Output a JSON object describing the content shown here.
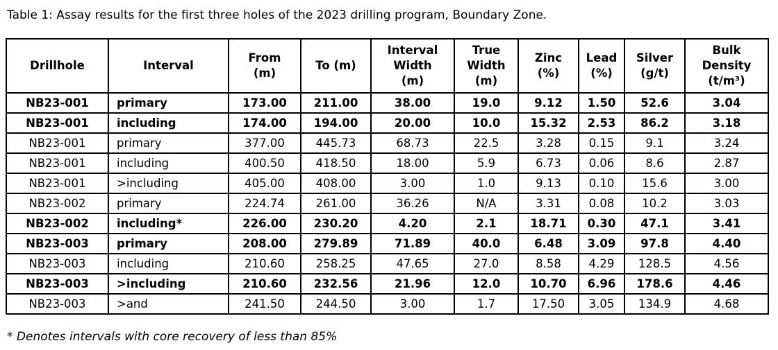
{
  "caption": "Table 1: Assay results for the first three holes of the 2023 drilling program, Boundary Zone.",
  "footnote": "* Denotes intervals with core recovery of less than 85%",
  "table": {
    "columns": [
      "Drillhole",
      "Interval",
      "From\n(m)",
      "To (m)",
      "Interval\nWidth\n(m)",
      "True\nWidth\n(m)",
      "Zinc\n(%)",
      "Lead\n(%)",
      "Silver\n(g/t)",
      "Bulk\nDensity\n(t/m³)"
    ],
    "rows": [
      {
        "bold": true,
        "cells": [
          "NB23-001",
          "primary",
          "173.00",
          "211.00",
          "38.00",
          "19.0",
          "9.12",
          "1.50",
          "52.6",
          "3.04"
        ]
      },
      {
        "bold": true,
        "cells": [
          "NB23-001",
          "including",
          "174.00",
          "194.00",
          "20.00",
          "10.0",
          "15.32",
          "2.53",
          "86.2",
          "3.18"
        ]
      },
      {
        "bold": false,
        "cells": [
          "NB23-001",
          "primary",
          "377.00",
          "445.73",
          "68.73",
          "22.5",
          "3.28",
          "0.15",
          "9.1",
          "3.24"
        ]
      },
      {
        "bold": false,
        "cells": [
          "NB23-001",
          "including",
          "400.50",
          "418.50",
          "18.00",
          "5.9",
          "6.73",
          "0.06",
          "8.6",
          "2.87"
        ]
      },
      {
        "bold": false,
        "cells": [
          "NB23-001",
          ">including",
          "405.00",
          "408.00",
          "3.00",
          "1.0",
          "9.13",
          "0.10",
          "15.6",
          "3.00"
        ]
      },
      {
        "bold": false,
        "cells": [
          "NB23-002",
          "primary",
          "224.74",
          "261.00",
          "36.26",
          "N/A",
          "3.31",
          "0.08",
          "10.2",
          "3.03"
        ]
      },
      {
        "bold": true,
        "cells": [
          "NB23-002",
          "including*",
          "226.00",
          "230.20",
          "4.20",
          "2.1",
          "18.71",
          "0.30",
          "47.1",
          "3.41"
        ]
      },
      {
        "bold": true,
        "cells": [
          "NB23-003",
          "primary",
          "208.00",
          "279.89",
          "71.89",
          "40.0",
          "6.48",
          "3.09",
          "97.8",
          "4.40"
        ]
      },
      {
        "bold": false,
        "cells": [
          "NB23-003",
          "including",
          "210.60",
          "258.25",
          "47.65",
          "27.0",
          "8.58",
          "4.29",
          "128.5",
          "4.56"
        ]
      },
      {
        "bold": true,
        "cells": [
          "NB23-003",
          ">including",
          "210.60",
          "232.56",
          "21.96",
          "12.0",
          "10.70",
          "6.96",
          "178.6",
          "4.46"
        ]
      },
      {
        "bold": false,
        "cells": [
          "NB23-003",
          ">and",
          "241.50",
          "244.50",
          "3.00",
          "1.7",
          "17.50",
          "3.05",
          "134.9",
          "4.68"
        ]
      }
    ]
  }
}
